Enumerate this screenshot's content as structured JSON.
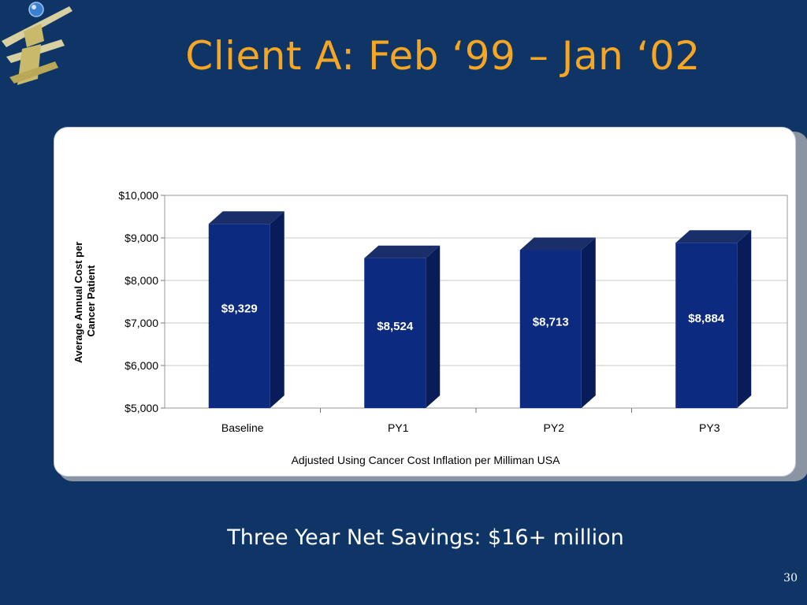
{
  "slide": {
    "title": "Client A: Feb ‘99 – Jan ‘02",
    "footer": "Three Year Net Savings: $16+ million",
    "page_number": "30",
    "colors": {
      "background": "#0e3566",
      "title": "#f5a623",
      "bar_front": "#0c2a80",
      "bar_side": "#081c5a",
      "bar_top": "#1a2f6a"
    },
    "logo_icon": "figure-globe-logo-icon"
  },
  "chart_data": {
    "type": "bar",
    "categories": [
      "Baseline",
      "PY1",
      "PY2",
      "PY3"
    ],
    "values": [
      9329,
      8524,
      8713,
      8884
    ],
    "data_labels": [
      "$9,329",
      "$8,524",
      "$8,713",
      "$8,884"
    ],
    "ylabel": "Average Annual Cost per Cancer Patient",
    "xlabel": "Adjusted Using Cancer Cost Inflation per Milliman USA",
    "ylim": [
      5000,
      10000
    ],
    "yticks": [
      5000,
      6000,
      7000,
      8000,
      9000,
      10000
    ],
    "ytick_labels": [
      "$5,000",
      "$6,000",
      "$7,000",
      "$8,000",
      "$9,000",
      "$10,000"
    ],
    "grid": true,
    "legend": "none",
    "style": "3d-column"
  }
}
